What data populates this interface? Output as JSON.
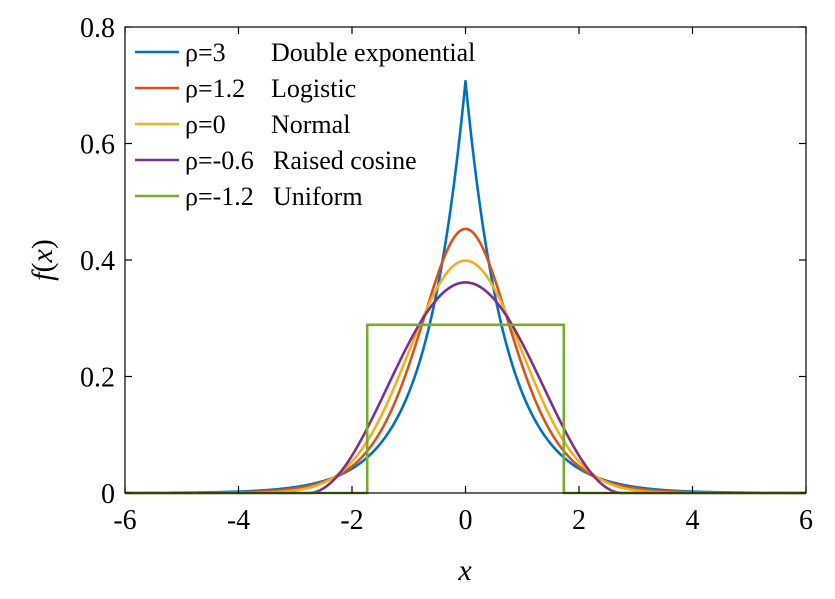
{
  "chart_data": {
    "type": "line",
    "title": "",
    "xlabel": "x",
    "ylabel": "f(x)",
    "xlim": [
      -6,
      6
    ],
    "ylim": [
      0,
      0.8
    ],
    "xticks": [
      -6,
      -4,
      -2,
      0,
      2,
      4,
      6
    ],
    "yticks": [
      0,
      0.2,
      0.4,
      0.6,
      0.8
    ],
    "xtick_labels": [
      "-6",
      "-4",
      "-2",
      "0",
      "2",
      "4",
      "6"
    ],
    "ytick_labels": [
      "0",
      "0.2",
      "0.4",
      "0.6",
      "0.8"
    ],
    "grid": false,
    "legend_position": "top-left",
    "series": [
      {
        "name": "Double exponential",
        "rho_label": "ρ=3",
        "distribution": "laplace",
        "color": "#0072BD",
        "peak": 0.707
      },
      {
        "name": "Logistic",
        "rho_label": "ρ=1.2",
        "distribution": "logistic",
        "color": "#D95319",
        "peak": 0.453
      },
      {
        "name": "Normal",
        "rho_label": "ρ=0",
        "distribution": "normal",
        "color": "#EDB120",
        "peak": 0.399
      },
      {
        "name": "Raised cosine",
        "rho_label": "ρ=-0.6",
        "distribution": "raised_cosine",
        "color": "#7E2F8E",
        "peak": 0.361
      },
      {
        "name": "Uniform",
        "rho_label": "ρ=-1.2",
        "distribution": "uniform",
        "color": "#77AC30",
        "peak": 0.289
      }
    ]
  }
}
